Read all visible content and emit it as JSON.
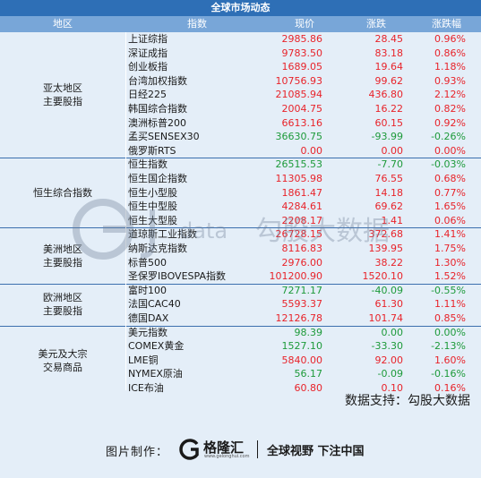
{
  "title": "全球市场动态",
  "headers": {
    "region": "地区",
    "index": "指数",
    "price": "现价",
    "change": "涨跌",
    "pct": "涨跌幅"
  },
  "groups": [
    {
      "region": "亚太地区\n主要股指",
      "rows": [
        {
          "name": "上证综指",
          "price": "2985.86",
          "change": "28.45",
          "pct": "0.96%",
          "dir": "up"
        },
        {
          "name": "深证成指",
          "price": "9783.50",
          "change": "83.18",
          "pct": "0.86%",
          "dir": "up"
        },
        {
          "name": "创业板指",
          "price": "1689.05",
          "change": "19.64",
          "pct": "1.18%",
          "dir": "up"
        },
        {
          "name": "台湾加权指数",
          "price": "10756.93",
          "change": "99.62",
          "pct": "0.93%",
          "dir": "up"
        },
        {
          "name": "日经225",
          "price": "21085.94",
          "change": "436.80",
          "pct": "2.12%",
          "dir": "up"
        },
        {
          "name": "韩国综合指数",
          "price": "2004.75",
          "change": "16.22",
          "pct": "0.82%",
          "dir": "up"
        },
        {
          "name": "澳洲标普200",
          "price": "6613.16",
          "change": "60.15",
          "pct": "0.92%",
          "dir": "up"
        },
        {
          "name": "孟买SENSEX30",
          "price": "36630.75",
          "change": "-93.99",
          "pct": "-0.26%",
          "dir": "down"
        },
        {
          "name": "俄罗斯RTS",
          "price": "0.00",
          "change": "0.00",
          "pct": "0.00%",
          "dir": "up"
        }
      ]
    },
    {
      "region": "恒生综合指数",
      "rows": [
        {
          "name": "恒生指数",
          "price": "26515.53",
          "change": "-7.70",
          "pct": "-0.03%",
          "dir": "down"
        },
        {
          "name": "恒生国企指数",
          "price": "11305.98",
          "change": "76.55",
          "pct": "0.68%",
          "dir": "up"
        },
        {
          "name": "恒生小型股",
          "price": "1861.47",
          "change": "14.18",
          "pct": "0.77%",
          "dir": "up"
        },
        {
          "name": "恒生中型股",
          "price": "4284.61",
          "change": "69.62",
          "pct": "1.65%",
          "dir": "up"
        },
        {
          "name": "恒生大型股",
          "price": "2208.17",
          "change": "1.41",
          "pct": "0.06%",
          "dir": "up"
        }
      ]
    },
    {
      "region": "美洲地区\n主要股指",
      "rows": [
        {
          "name": "道琼斯工业指数",
          "price": "26728.15",
          "change": "372.68",
          "pct": "1.41%",
          "dir": "up"
        },
        {
          "name": "纳斯达克指数",
          "price": "8116.83",
          "change": "139.95",
          "pct": "1.75%",
          "dir": "up"
        },
        {
          "name": "标普500",
          "price": "2976.00",
          "change": "38.22",
          "pct": "1.30%",
          "dir": "up"
        },
        {
          "name": "圣保罗IBOVESPA指数",
          "price": "101200.90",
          "change": "1520.10",
          "pct": "1.52%",
          "dir": "up"
        }
      ]
    },
    {
      "region": "欧洲地区\n主要股指",
      "rows": [
        {
          "name": "富时100",
          "price": "7271.17",
          "change": "-40.09",
          "pct": "-0.55%",
          "dir": "down"
        },
        {
          "name": "法国CAC40",
          "price": "5593.37",
          "change": "61.30",
          "pct": "1.11%",
          "dir": "up"
        },
        {
          "name": "德国DAX",
          "price": "12126.78",
          "change": "101.74",
          "pct": "0.85%",
          "dir": "up"
        }
      ]
    },
    {
      "region": "美元及大宗\n交易商品",
      "rows": [
        {
          "name": "美元指数",
          "price": "98.39",
          "change": "0.00",
          "pct": "0.00%",
          "dir": "down"
        },
        {
          "name": "COMEX黄金",
          "price": "1527.10",
          "change": "-33.30",
          "pct": "-2.13%",
          "dir": "down"
        },
        {
          "name": "LME铜",
          "price": "5840.00",
          "change": "92.00",
          "pct": "1.60%",
          "dir": "up"
        },
        {
          "name": "NYMEX原油",
          "price": "56.17",
          "change": "-0.09",
          "pct": "-0.16%",
          "dir": "down"
        },
        {
          "name": "ICE布油",
          "price": "60.80",
          "change": "0.10",
          "pct": "0.16%",
          "dir": "up"
        }
      ]
    }
  ],
  "watermark": {
    "latin": "data",
    "cn": "勾股大数据"
  },
  "source": "数据支持：勾股大数据",
  "footer": {
    "made_by": "图片制作：",
    "brand": "格隆汇",
    "brand_url": "www.gelonghui.com",
    "slogan": "全球视野  下注中国"
  },
  "colors": {
    "up": "#e8232a",
    "down": "#1d9a3a",
    "title_bg": "#2e6fb6",
    "header_bg": "#78a6d8"
  }
}
